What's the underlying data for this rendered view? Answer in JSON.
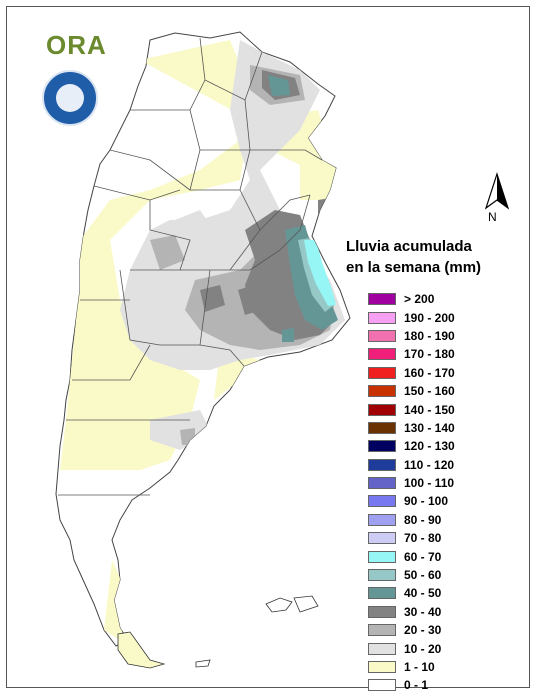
{
  "logo": {
    "text": "ORA"
  },
  "north_arrow": {
    "label": "N"
  },
  "legend": {
    "title_line1": "Lluvia acumulada",
    "title_line2": "en la semana (mm)",
    "items": [
      {
        "label": "> 200",
        "color": "#a000a0"
      },
      {
        "label": "190 - 200",
        "color": "#f5a0f0"
      },
      {
        "label": "180 - 190",
        "color": "#f070b0"
      },
      {
        "label": "170 - 180",
        "color": "#f0207a"
      },
      {
        "label": "160 - 170",
        "color": "#f02020"
      },
      {
        "label": "150 - 160",
        "color": "#c83200"
      },
      {
        "label": "140 - 150",
        "color": "#a00000"
      },
      {
        "label": "130 - 140",
        "color": "#6a3200"
      },
      {
        "label": "120 - 130",
        "color": "#000060"
      },
      {
        "label": "110 - 120",
        "color": "#1e3c9a"
      },
      {
        "label": "100 - 110",
        "color": "#6464c8"
      },
      {
        "label": "90 - 100",
        "color": "#7878f0"
      },
      {
        "label": "80 - 90",
        "color": "#a0a0f0"
      },
      {
        "label": "70 - 80",
        "color": "#ccccf5"
      },
      {
        "label": "60 - 70",
        "color": "#96f5f5"
      },
      {
        "label": "50 - 60",
        "color": "#96c8c8"
      },
      {
        "label": "40 - 50",
        "color": "#649696"
      },
      {
        "label": "30 - 40",
        "color": "#828282"
      },
      {
        "label": "20 - 30",
        "color": "#b4b4b4"
      },
      {
        "label": "10 - 20",
        "color": "#e1e1e1"
      },
      {
        "label": "1 - 10",
        "color": "#fafac8"
      },
      {
        "label": "0 - 1",
        "color": "#ffffff"
      }
    ]
  }
}
